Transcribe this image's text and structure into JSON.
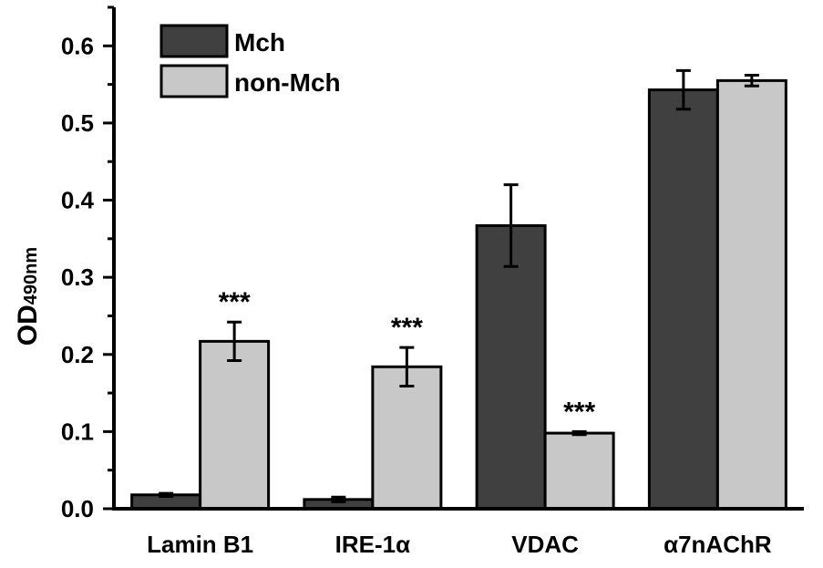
{
  "chart_data": {
    "type": "bar",
    "title": "",
    "xlabel": "",
    "ylabel": "OD",
    "ylabel_subscript": "490nm",
    "ylim": [
      0,
      0.65
    ],
    "yticks": [
      0.0,
      0.1,
      0.2,
      0.3,
      0.4,
      0.5,
      0.6
    ],
    "ytick_labels": [
      "0.0",
      "0.1",
      "0.2",
      "0.3",
      "0.4",
      "0.5",
      "0.6"
    ],
    "categories": [
      "Lamin B1",
      "IRE-1α",
      "VDAC",
      "α7nAChR"
    ],
    "series": [
      {
        "name": "Mch",
        "color": "#404040",
        "values": [
          0.018,
          0.012,
          0.367,
          0.543
        ],
        "errors": [
          0.002,
          0.003,
          0.053,
          0.025
        ],
        "annotations": [
          "",
          "",
          "",
          ""
        ]
      },
      {
        "name": "non-Mch",
        "color": "#c8c8c8",
        "values": [
          0.217,
          0.184,
          0.098,
          0.555
        ],
        "errors": [
          0.025,
          0.025,
          0.002,
          0.007
        ],
        "annotations": [
          "***",
          "***",
          "***",
          ""
        ]
      }
    ],
    "legend": {
      "position": "top-left"
    },
    "grid": false
  }
}
